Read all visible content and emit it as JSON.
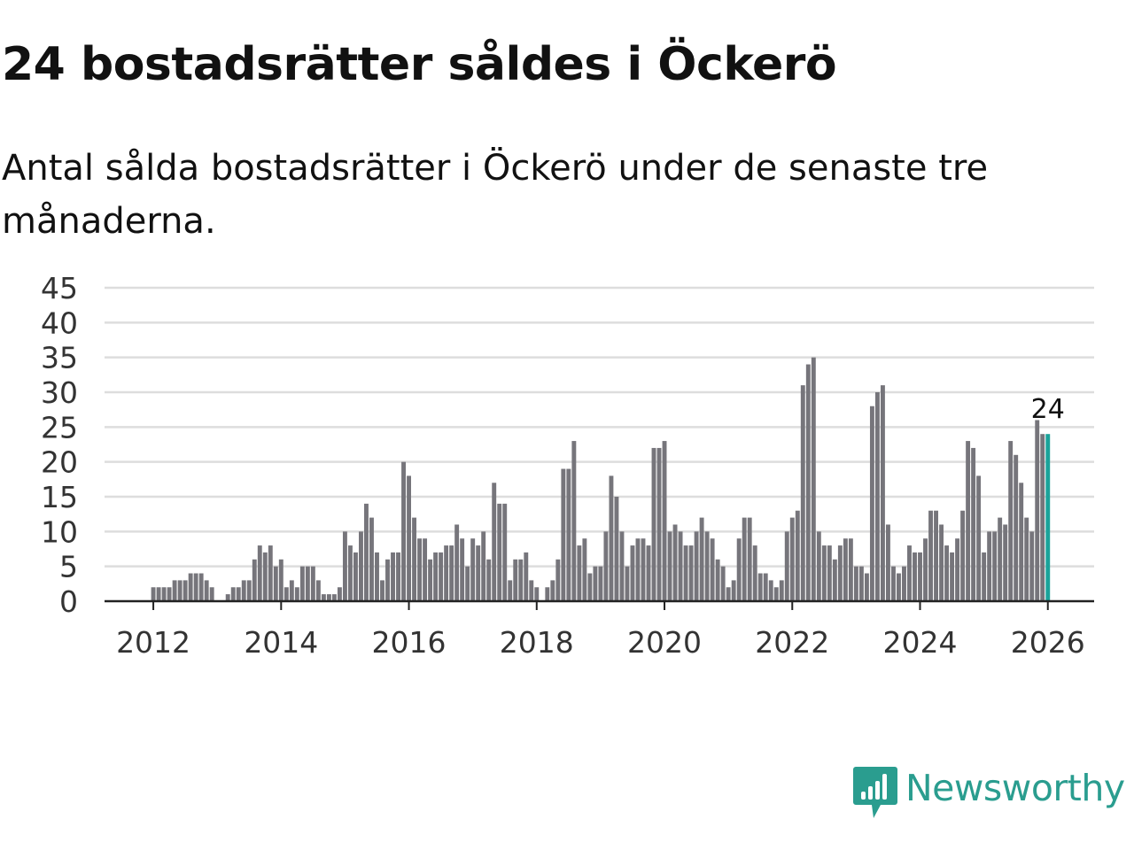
{
  "title": "24 bostadsrätter såldes i Öckerö",
  "subtitle": "Antal sålda bostadsrätter i Öckerö under de senaste tre månaderna.",
  "branding": {
    "name": "Newsworthy",
    "color": "#2a9d8f"
  },
  "colors": {
    "bar": "#76757b",
    "highlight": "#1aa39a",
    "grid": "#dddddd",
    "axis": "#222222",
    "text": "#333333"
  },
  "chart_data": {
    "type": "bar",
    "title": "24 bostadsrätter såldes i Öckerö",
    "xlabel": "",
    "ylabel": "",
    "ylim": [
      0,
      45
    ],
    "yticks": [
      "0",
      "5",
      "10",
      "15",
      "20",
      "25",
      "30",
      "35",
      "40",
      "45"
    ],
    "xticks": [
      "2012",
      "2014",
      "2016",
      "2018",
      "2020",
      "2022",
      "2024",
      "2026"
    ],
    "start": "2011-01",
    "end": "2026-01",
    "grid": true,
    "highlight_label": "24",
    "series": [
      {
        "name": "Antal sålda bostadsrätter",
        "values": [
          0,
          0,
          0,
          0,
          0,
          0,
          0,
          0,
          0,
          0,
          0,
          0,
          2,
          2,
          2,
          2,
          3,
          3,
          3,
          4,
          4,
          4,
          3,
          2,
          0,
          0,
          1,
          2,
          2,
          3,
          3,
          6,
          8,
          7,
          8,
          5,
          6,
          2,
          3,
          2,
          5,
          5,
          5,
          3,
          1,
          1,
          1,
          2,
          10,
          8,
          7,
          10,
          14,
          12,
          7,
          3,
          6,
          7,
          7,
          20,
          18,
          12,
          9,
          9,
          6,
          7,
          7,
          8,
          8,
          11,
          9,
          5,
          9,
          8,
          10,
          6,
          17,
          14,
          14,
          3,
          6,
          6,
          7,
          3,
          2,
          0,
          2,
          3,
          6,
          19,
          19,
          23,
          8,
          9,
          4,
          5,
          5,
          10,
          18,
          15,
          10,
          5,
          8,
          9,
          9,
          8,
          22,
          22,
          23,
          10,
          11,
          10,
          8,
          8,
          10,
          12,
          10,
          9,
          6,
          5,
          2,
          3,
          9,
          12,
          12,
          8,
          4,
          4,
          3,
          2,
          3,
          10,
          12,
          13,
          31,
          34,
          35,
          10,
          8,
          8,
          6,
          8,
          9,
          9,
          5,
          5,
          4,
          28,
          30,
          31,
          11,
          5,
          4,
          5,
          8,
          7,
          7,
          9,
          13,
          13,
          11,
          8,
          7,
          9,
          13,
          23,
          22,
          18,
          7,
          10,
          10,
          12,
          11,
          23,
          21,
          17,
          12,
          10,
          26,
          24,
          24
        ]
      }
    ]
  }
}
